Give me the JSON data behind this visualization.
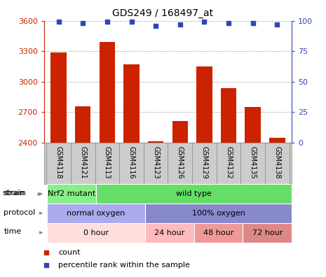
{
  "title": "GDS249 / 168497_at",
  "samples": [
    "GSM4118",
    "GSM4121",
    "GSM4113",
    "GSM4116",
    "GSM4123",
    "GSM4126",
    "GSM4129",
    "GSM4132",
    "GSM4135",
    "GSM4138"
  ],
  "counts": [
    3290,
    2760,
    3390,
    3170,
    2415,
    2610,
    3150,
    2940,
    2750,
    2450
  ],
  "percentiles": [
    99,
    98,
    99,
    99,
    96,
    97,
    99,
    98,
    98,
    97
  ],
  "ylim_left": [
    2400,
    3600
  ],
  "ylim_right": [
    0,
    100
  ],
  "yticks_left": [
    2400,
    2700,
    3000,
    3300,
    3600
  ],
  "yticks_right": [
    0,
    25,
    50,
    75,
    100
  ],
  "bar_color": "#cc2200",
  "dot_color": "#3344bb",
  "strain_segments": [
    {
      "text": "Nrf2 mutant",
      "start": 0,
      "end": 2,
      "color": "#88ee88"
    },
    {
      "text": "wild type",
      "start": 2,
      "end": 10,
      "color": "#66dd66"
    }
  ],
  "protocol_segments": [
    {
      "text": "normal oxygen",
      "start": 0,
      "end": 4,
      "color": "#aaaaee"
    },
    {
      "text": "100% oxygen",
      "start": 4,
      "end": 10,
      "color": "#8888cc"
    }
  ],
  "time_segments": [
    {
      "text": "0 hour",
      "start": 0,
      "end": 4,
      "color": "#ffdddd"
    },
    {
      "text": "24 hour",
      "start": 4,
      "end": 6,
      "color": "#ffbbbb"
    },
    {
      "text": "48 hour",
      "start": 6,
      "end": 8,
      "color": "#ee9999"
    },
    {
      "text": "72 hour",
      "start": 8,
      "end": 10,
      "color": "#dd8888"
    }
  ],
  "row_labels": [
    "strain",
    "protocol",
    "time"
  ],
  "legend_count_label": "count",
  "legend_percentile_label": "percentile rank within the sample",
  "grid_color": "#888888",
  "tick_color_left": "#cc2200",
  "tick_color_right": "#3344bb",
  "sample_bg_color": "#cccccc",
  "arrow_color": "#888888",
  "label_text_color": "#333333"
}
